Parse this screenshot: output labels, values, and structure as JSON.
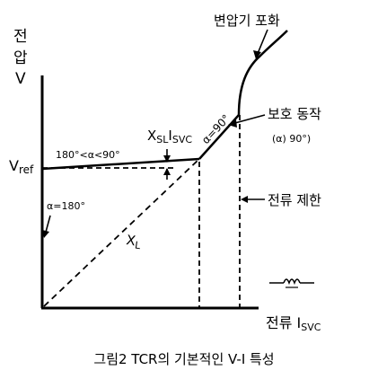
{
  "axes": {
    "y_label_line1": "전",
    "y_label_line2": "압",
    "y_label_line3": "V",
    "x_label": "전류 I",
    "x_label_sub": "SVC"
  },
  "labels": {
    "saturation": "변압기 포화",
    "protection": "보호 동작",
    "protection_cond": "(α) 90°)",
    "current_limit": "전류 제한",
    "vref_main": "V",
    "vref_sub": "ref",
    "angle_range": "180°<α<90°",
    "alpha_180": "α=180°",
    "alpha_90": "α=90°",
    "xsl_x": "X",
    "xsl_sub1": "SL",
    "xsl_i": "I",
    "xsl_sub2": "SVC",
    "xl_main": "X",
    "xl_sub": "L"
  },
  "caption": "그림2 TCR의 기본적인 V-I 특성",
  "colors": {
    "ink": "#000000",
    "background": "#ffffff"
  }
}
